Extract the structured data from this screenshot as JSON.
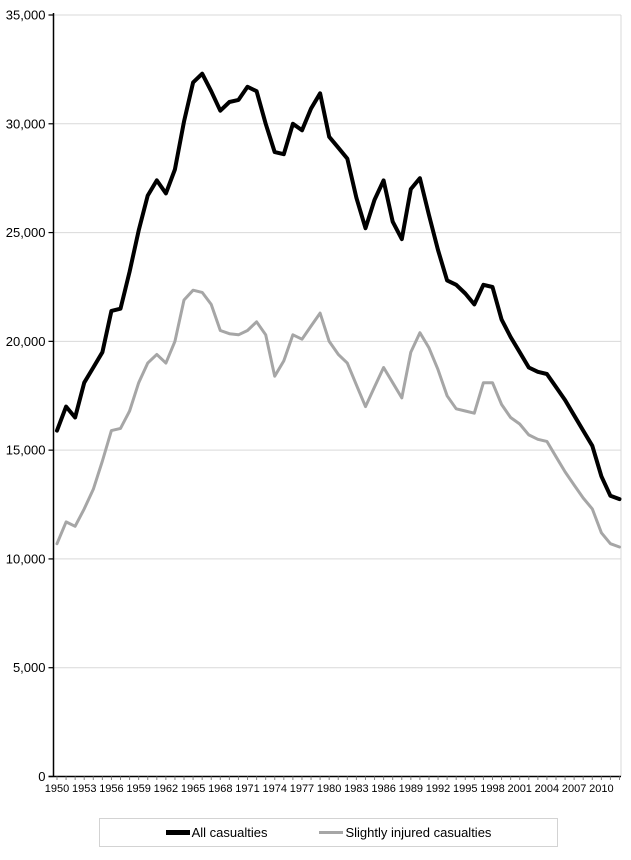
{
  "chart_data": {
    "type": "line",
    "title": "",
    "xlabel": "",
    "ylabel": "",
    "ylim": [
      0,
      35000
    ],
    "grid": "horizontal",
    "legend_position": "bottom",
    "colors": {
      "grid": "#d9d9d9",
      "axis": "#000000",
      "x_tick": "#7f7f7f",
      "background": "#ffffff",
      "legend_border": "#d3d3d3"
    },
    "y_ticks": [
      0,
      5000,
      10000,
      15000,
      20000,
      25000,
      30000,
      35000
    ],
    "y_tick_labels": [
      "0",
      "5,000",
      "10,000",
      "15,000",
      "20,000",
      "25,000",
      "30,000",
      "35,000"
    ],
    "x_tick_step": 3,
    "x_tick_labels": [
      "1950",
      "1953",
      "1956",
      "1959",
      "1962",
      "1965",
      "1968",
      "1971",
      "1974",
      "1977",
      "1980",
      "1983",
      "1986",
      "1989",
      "1992",
      "1995",
      "1998",
      "2001",
      "2004",
      "2007",
      "2010"
    ],
    "years": [
      1950,
      1951,
      1952,
      1953,
      1954,
      1955,
      1956,
      1957,
      1958,
      1959,
      1960,
      1961,
      1962,
      1963,
      1964,
      1965,
      1966,
      1967,
      1968,
      1969,
      1970,
      1971,
      1972,
      1973,
      1974,
      1975,
      1976,
      1977,
      1978,
      1979,
      1980,
      1981,
      1982,
      1983,
      1984,
      1985,
      1986,
      1987,
      1988,
      1989,
      1990,
      1991,
      1992,
      1993,
      1994,
      1995,
      1996,
      1997,
      1998,
      1999,
      2000,
      2001,
      2002,
      2003,
      2004,
      2005,
      2006,
      2007,
      2008,
      2009,
      2010,
      2011,
      2012
    ],
    "series": [
      {
        "name": "All casualties",
        "color": "#000000",
        "stroke_width": 4,
        "values": [
          15900,
          17000,
          16500,
          18100,
          18800,
          19500,
          21400,
          21500,
          23200,
          25100,
          26700,
          27400,
          26800,
          27900,
          30100,
          31900,
          32300,
          31500,
          30600,
          31000,
          31100,
          31700,
          31500,
          30000,
          28700,
          28600,
          30000,
          29700,
          30700,
          31400,
          29400,
          28900,
          28400,
          26600,
          25200,
          26500,
          27400,
          25500,
          24700,
          27000,
          27500,
          25800,
          24200,
          22800,
          22600,
          22200,
          21700,
          22600,
          22500,
          21000,
          20200,
          19500,
          18800,
          18600,
          18500,
          17900,
          17300,
          16600,
          15900,
          15200,
          13800,
          12900,
          12750
        ]
      },
      {
        "name": "Slightly injured casualties",
        "color": "#a6a6a6",
        "stroke_width": 3,
        "values": [
          10700,
          11700,
          11500,
          12300,
          13200,
          14500,
          15900,
          16000,
          16800,
          18100,
          19000,
          19400,
          19000,
          20000,
          21900,
          22350,
          22250,
          21700,
          20500,
          20350,
          20300,
          20500,
          20900,
          20300,
          18400,
          19100,
          20300,
          20100,
          20700,
          21300,
          20000,
          19400,
          19000,
          18000,
          17000,
          17900,
          18800,
          18100,
          17400,
          19500,
          20400,
          19700,
          18700,
          17500,
          16900,
          16800,
          16700,
          18100,
          18100,
          17100,
          16500,
          16200,
          15700,
          15500,
          15400,
          14700,
          14000,
          13400,
          12800,
          12300,
          11200,
          10700,
          10550
        ]
      }
    ]
  }
}
